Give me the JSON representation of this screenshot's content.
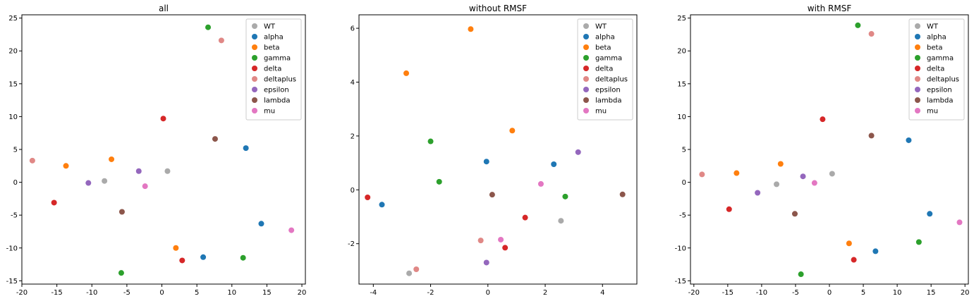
{
  "chart_data": [
    {
      "type": "scatter",
      "title": "all",
      "xlabel": "",
      "ylabel": "",
      "xlim": [
        -20,
        20.5
      ],
      "ylim": [
        -15.5,
        25.5
      ],
      "xticks": [
        -20,
        -15,
        -10,
        -5,
        0,
        5,
        10,
        15,
        20
      ],
      "yticks": [
        -15,
        -10,
        -5,
        0,
        5,
        10,
        15,
        20,
        25
      ],
      "legend": "top-right",
      "series": [
        {
          "name": "WT",
          "color": "#aaaaaa",
          "points": [
            [
              -8.2,
              0.2
            ],
            [
              0.8,
              1.7
            ]
          ]
        },
        {
          "name": "alpha",
          "color": "#1f77b4",
          "points": [
            [
              12.0,
              5.2
            ],
            [
              5.9,
              -11.4
            ],
            [
              14.2,
              -6.3
            ]
          ]
        },
        {
          "name": "beta",
          "color": "#ff7f0e",
          "points": [
            [
              -7.2,
              3.5
            ],
            [
              -13.7,
              2.5
            ],
            [
              2.0,
              -10.0
            ]
          ]
        },
        {
          "name": "gamma",
          "color": "#2ca02c",
          "points": [
            [
              6.6,
              23.6
            ],
            [
              11.6,
              -11.5
            ],
            [
              -5.8,
              -13.8
            ]
          ]
        },
        {
          "name": "delta",
          "color": "#d62728",
          "points": [
            [
              0.2,
              9.7
            ],
            [
              -15.4,
              -3.1
            ],
            [
              2.9,
              -11.9
            ]
          ]
        },
        {
          "name": "deltaplus",
          "color": "#e08886",
          "points": [
            [
              8.5,
              21.6
            ],
            [
              -18.5,
              3.3
            ]
          ]
        },
        {
          "name": "epsilon",
          "color": "#9467bd",
          "points": [
            [
              -3.3,
              1.7
            ],
            [
              -10.5,
              -0.1
            ]
          ]
        },
        {
          "name": "lambda",
          "color": "#8c564b",
          "points": [
            [
              7.6,
              6.6
            ],
            [
              -5.7,
              -4.5
            ]
          ]
        },
        {
          "name": "mu",
          "color": "#e377c2",
          "points": [
            [
              -2.4,
              -0.6
            ],
            [
              18.5,
              -7.3
            ]
          ]
        }
      ]
    },
    {
      "type": "scatter",
      "title": "without RMSF",
      "xlabel": "",
      "ylabel": "",
      "xlim": [
        -4.5,
        5.2
      ],
      "ylim": [
        -3.5,
        6.5
      ],
      "xticks": [
        -4,
        -2,
        0,
        2,
        4
      ],
      "yticks": [
        -2,
        0,
        2,
        4,
        6
      ],
      "legend": "top-right",
      "series": [
        {
          "name": "WT",
          "color": "#aaaaaa",
          "points": [
            [
              2.55,
              -1.15
            ],
            [
              -2.75,
              -3.1
            ]
          ]
        },
        {
          "name": "alpha",
          "color": "#1f77b4",
          "points": [
            [
              -0.05,
              1.05
            ],
            [
              2.3,
              0.95
            ],
            [
              -3.7,
              -0.55
            ]
          ]
        },
        {
          "name": "beta",
          "color": "#ff7f0e",
          "points": [
            [
              -0.6,
              5.97
            ],
            [
              -2.85,
              4.33
            ],
            [
              0.85,
              2.2
            ]
          ]
        },
        {
          "name": "gamma",
          "color": "#2ca02c",
          "points": [
            [
              -2.0,
              1.8
            ],
            [
              -1.7,
              0.3
            ],
            [
              2.7,
              -0.25
            ]
          ]
        },
        {
          "name": "delta",
          "color": "#d62728",
          "points": [
            [
              -4.2,
              -0.28
            ],
            [
              1.3,
              -1.03
            ],
            [
              0.6,
              -2.15
            ]
          ]
        },
        {
          "name": "deltaplus",
          "color": "#e08886",
          "points": [
            [
              -0.25,
              -1.88
            ],
            [
              -2.5,
              -2.95
            ]
          ]
        },
        {
          "name": "epsilon",
          "color": "#9467bd",
          "points": [
            [
              3.15,
              1.4
            ],
            [
              -0.05,
              -2.7
            ]
          ]
        },
        {
          "name": "lambda",
          "color": "#8c564b",
          "points": [
            [
              0.15,
              -0.18
            ],
            [
              4.7,
              -0.17
            ]
          ]
        },
        {
          "name": "mu",
          "color": "#e377c2",
          "points": [
            [
              1.85,
              0.22
            ],
            [
              0.45,
              -1.85
            ]
          ]
        }
      ]
    },
    {
      "type": "scatter",
      "title": "with RMSF",
      "xlabel": "",
      "ylabel": "",
      "xlim": [
        -20.5,
        20.5
      ],
      "ylim": [
        -15.5,
        25.5
      ],
      "xticks": [
        -20,
        -15,
        -10,
        -5,
        0,
        5,
        10,
        15,
        20
      ],
      "yticks": [
        -15,
        -10,
        -5,
        0,
        5,
        10,
        15,
        20,
        25
      ],
      "legend": "top-right",
      "series": [
        {
          "name": "WT",
          "color": "#aaaaaa",
          "points": [
            [
              -7.8,
              -0.3
            ],
            [
              0.4,
              1.3
            ]
          ]
        },
        {
          "name": "alpha",
          "color": "#1f77b4",
          "points": [
            [
              11.7,
              6.4
            ],
            [
              14.8,
              -4.8
            ],
            [
              6.8,
              -10.5
            ]
          ]
        },
        {
          "name": "beta",
          "color": "#ff7f0e",
          "points": [
            [
              -7.2,
              2.8
            ],
            [
              -13.7,
              1.4
            ],
            [
              2.9,
              -9.3
            ]
          ]
        },
        {
          "name": "gamma",
          "color": "#2ca02c",
          "points": [
            [
              4.2,
              23.9
            ],
            [
              13.2,
              -9.1
            ],
            [
              -4.2,
              -14.0
            ]
          ]
        },
        {
          "name": "delta",
          "color": "#d62728",
          "points": [
            [
              -1.0,
              9.6
            ],
            [
              -14.8,
              -4.1
            ],
            [
              3.6,
              -11.8
            ]
          ]
        },
        {
          "name": "deltaplus",
          "color": "#e08886",
          "points": [
            [
              6.2,
              22.6
            ],
            [
              -18.8,
              1.2
            ]
          ]
        },
        {
          "name": "epsilon",
          "color": "#9467bd",
          "points": [
            [
              -3.9,
              0.9
            ],
            [
              -10.6,
              -1.6
            ]
          ]
        },
        {
          "name": "lambda",
          "color": "#8c564b",
          "points": [
            [
              6.2,
              7.1
            ],
            [
              -5.1,
              -4.8
            ]
          ]
        },
        {
          "name": "mu",
          "color": "#e377c2",
          "points": [
            [
              -2.2,
              -0.1
            ],
            [
              19.2,
              -6.1
            ]
          ]
        }
      ]
    }
  ]
}
